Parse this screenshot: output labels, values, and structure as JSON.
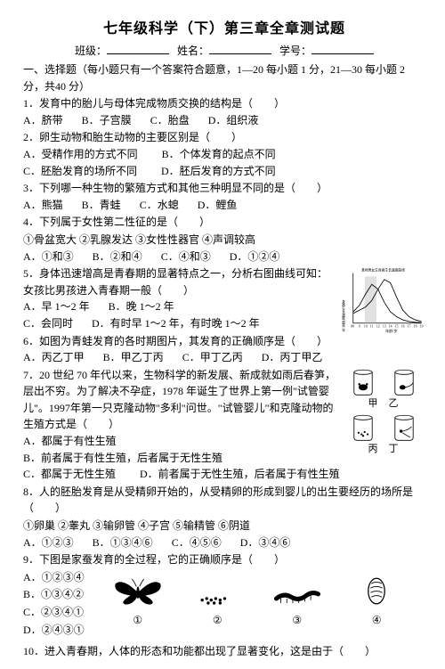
{
  "doc": {
    "title": "七年级科学（下）第三章全章测试题",
    "header": {
      "classLabel": "班级：",
      "nameLabel": "姓名：",
      "idLabel": "学号："
    },
    "section1_head": "一、选择题（每小题只有一个答案符合题意，1—20 每小题 1 分，21—30 每小题 2 分，共40 分）",
    "q1": {
      "stem": "1．发育中的胎儿与母体完成物质交换的结构是（　　）",
      "A": "A．脐带",
      "B": "B．子宫膜",
      "C": "C．胎盘",
      "D": "D．组织液"
    },
    "q2": {
      "stem": "2．卵生动物和胎生动物的主要区别是（　　）",
      "A": "A．受精作用的方式不同",
      "B": "B．个体发育的起点不同",
      "C": "C．胚胎发育的场所不同",
      "D": "D．胚后发育的方式不同"
    },
    "q3": {
      "stem": "3．下列哪一种生物的繁殖方式和其他三种明显不同的是（　　）",
      "A": "A．熊猫",
      "B": "B．青蛙",
      "C": "C．水螅",
      "D": "D．鲤鱼"
    },
    "q4": {
      "stem": "4．下列属于女性第二性征的是（　　）",
      "choices_line": "①骨盆宽大  ②乳腺发达  ③女性性器官  ④声调较高",
      "A": "A．①和③",
      "B": "B．②和④",
      "C": "C．④和③",
      "D": "D．①②④"
    },
    "q5": {
      "stem": "5．身体迅速增高是青春期的显著特点之一，分析右图曲线可知：女孩比男孩进入青春期一般（　　）",
      "A": "A．早 1～2 年",
      "B": "B．晚 1～2 年",
      "C": "C．会同时",
      "D": "D．有时早 1～2 年，有时晚 1～2 年"
    },
    "q6": {
      "stem": "6．如图为青蛙发育的各时期图片，其发育的正确顺序是（　　）",
      "A": "A．丙乙丁甲",
      "B": "B．甲乙丁丙",
      "C": "C．甲丁乙丙",
      "D": "D．丙丁甲乙"
    },
    "q7": {
      "stem": "7．20 世纪 70 年代以来，生物科学的新发展、新成就如雨后春笋，层出不穷。为了解决不孕症，1978 年诞生了世界上第一例\"试管婴儿\"。1997年第一只克隆动物\"多利\"问世。\"试管婴儿\"和克隆动物的生殖方式是（　　）",
      "A": "A．都属于有性生殖",
      "B": "B．前者属于有性生殖，后者属于无性生殖",
      "C": "C．都属于无性生殖",
      "D": "D．前者属于无性生殖，后者属于有性生殖"
    },
    "q8": {
      "stem": "8．人的胚胎发育是从受精卵开始的，从受精卵的形成到婴儿的出生要经历的场所是（　　）",
      "choices_line": "①卵巢  ②睾丸  ③输卵管  ④子宫  ⑤输精管  ⑥阴道",
      "A": "A．①②③",
      "B": "B．①③④⑥",
      "C": "C．④⑤⑥",
      "D": "D．③④⑥"
    },
    "q9": {
      "stem": "9．下图是家蚕发育的全过程，它的正确顺序是（　　）",
      "A": "A．①②③④",
      "B": "B．①③④②",
      "C": "C．②③④①",
      "D": "D．②④③①"
    },
    "q10": {
      "stem": "10．进入青春期，人体的形态和功能都出现了显著变化，这是由于（　　）"
    }
  },
  "chart": {
    "title": "某地男女生身高生长速度曲线",
    "x_label": "年龄/岁",
    "x_ticks": [
      0,
      8,
      9,
      10,
      11,
      12,
      13,
      14,
      15,
      16,
      17,
      18,
      19
    ],
    "series": [
      {
        "name": "男",
        "color": "#000000",
        "pts": [
          [
            8,
            1.2
          ],
          [
            9,
            1.6
          ],
          [
            10,
            2.0
          ],
          [
            11,
            2.8
          ],
          [
            12,
            4.2
          ],
          [
            13,
            5.4
          ],
          [
            14,
            5.0
          ],
          [
            15,
            3.2
          ],
          [
            16,
            1.6
          ],
          [
            17,
            0.8
          ],
          [
            18,
            0.4
          ],
          [
            19,
            0.2
          ]
        ]
      },
      {
        "name": "女",
        "color": "#000000",
        "pts": [
          [
            8,
            1.4
          ],
          [
            9,
            2.2
          ],
          [
            10,
            3.6
          ],
          [
            11,
            4.8
          ],
          [
            12,
            4.2
          ],
          [
            13,
            2.6
          ],
          [
            14,
            1.4
          ],
          [
            15,
            0.8
          ],
          [
            16,
            0.4
          ],
          [
            17,
            0.2
          ],
          [
            18,
            0.1
          ],
          [
            19,
            0.05
          ]
        ]
      }
    ],
    "shade_x": [
      10,
      12
    ],
    "ylim": [
      0,
      6
    ]
  },
  "jars": {
    "labels": [
      "甲",
      "乙",
      "丙",
      "丁"
    ]
  },
  "insect_stages": [
    "①",
    "②",
    "③",
    "④"
  ]
}
